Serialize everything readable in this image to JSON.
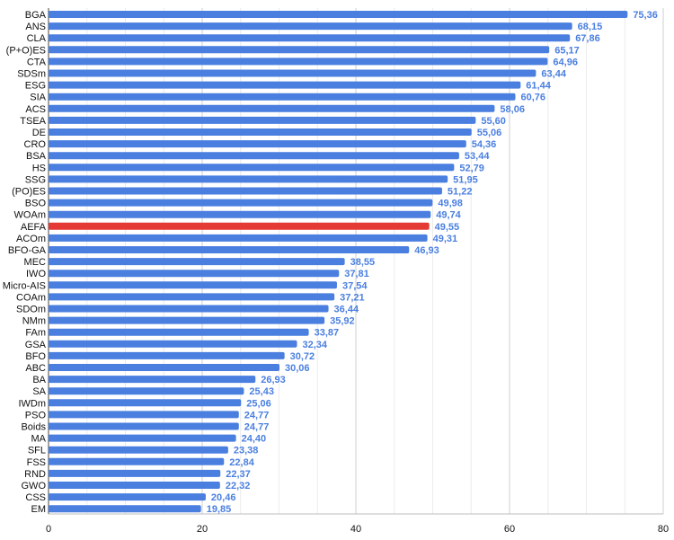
{
  "colors": {
    "bar": "#4a7fe0",
    "highlight": "#e53935",
    "value_label": "#4a7fe0",
    "grid": "#d9d9d9",
    "axis": "#444444"
  },
  "chart_data": {
    "type": "bar",
    "orientation": "horizontal",
    "title": "",
    "xlabel": "",
    "ylabel": "",
    "xlim": [
      0,
      80
    ],
    "ticks": [
      "0",
      "20",
      "40",
      "60",
      "80"
    ],
    "grid": true,
    "legend": "none",
    "highlight": "AEFA",
    "categories": [
      "BGA",
      "ANS",
      "CLA",
      "(P+O)ES",
      "CTA",
      "SDSm",
      "ESG",
      "SIA",
      "ACS",
      "TSEA",
      "DE",
      "CRO",
      "BSA",
      "HS",
      "SSG",
      "(PO)ES",
      "BSO",
      "WOAm",
      "AEFA",
      "ACOm",
      "BFO-GA",
      "MEC",
      "IWO",
      "Micro-AIS",
      "COAm",
      "SDOm",
      "NMm",
      "FAm",
      "GSA",
      "BFO",
      "ABC",
      "BA",
      "SA",
      "IWDm",
      "PSO",
      "Boids",
      "MA",
      "SFL",
      "FSS",
      "RND",
      "GWO",
      "CSS",
      "EM"
    ],
    "values": [
      75.36,
      68.15,
      67.86,
      65.17,
      64.96,
      63.44,
      61.44,
      60.76,
      58.06,
      55.6,
      55.06,
      54.36,
      53.44,
      52.79,
      51.95,
      51.22,
      49.98,
      49.74,
      49.55,
      49.31,
      46.93,
      38.55,
      37.81,
      37.54,
      37.21,
      36.44,
      35.92,
      33.87,
      32.34,
      30.72,
      30.06,
      26.93,
      25.43,
      25.06,
      24.77,
      24.77,
      24.4,
      23.38,
      22.84,
      22.37,
      22.32,
      20.46,
      19.85
    ],
    "value_labels": [
      "75,36",
      "68,15",
      "67,86",
      "65,17",
      "64,96",
      "63,44",
      "61,44",
      "60,76",
      "58,06",
      "55,60",
      "55,06",
      "54,36",
      "53,44",
      "52,79",
      "51,95",
      "51,22",
      "49,98",
      "49,74",
      "49,55",
      "49,31",
      "46,93",
      "38,55",
      "37,81",
      "37,54",
      "37,21",
      "36,44",
      "35,92",
      "33,87",
      "32,34",
      "30,72",
      "30,06",
      "26,93",
      "25,43",
      "25,06",
      "24,77",
      "24,77",
      "24,40",
      "23,38",
      "22,84",
      "22,37",
      "22,32",
      "20,46",
      "19,85"
    ]
  }
}
